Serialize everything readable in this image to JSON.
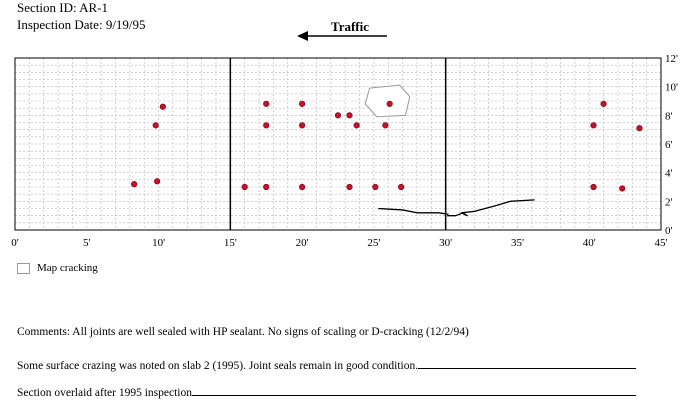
{
  "header": {
    "section_label": "Section ID:",
    "section_value": "AR-1",
    "date_label": "Inspection Date:",
    "date_value": "9/19/95"
  },
  "traffic": {
    "label": "Traffic",
    "direction": "left"
  },
  "legend": {
    "label": "Map cracking"
  },
  "comments": {
    "line1": "Comments: All joints are well sealed with HP sealant.  No signs of scaling or D-cracking (12/2/94)",
    "line2": "Some surface crazing was noted on slab 2 (1995).  Joint seals remain in good condition.",
    "line3": "Section overlaid after 1995 inspection"
  },
  "chart_data": {
    "type": "scatter",
    "x_ticks": [
      "0'",
      "5'",
      "10'",
      "15'",
      "20'",
      "25'",
      "30'",
      "35'",
      "40'",
      "45'"
    ],
    "y_ticks": [
      "0'",
      "2'",
      "4'",
      "6'",
      "8'",
      "10'",
      "12'"
    ],
    "xlim": [
      0,
      45
    ],
    "ylim": [
      0,
      12
    ],
    "joints_ft": [
      15,
      30
    ],
    "grid": true,
    "point_color": "#c8102e",
    "points": [
      {
        "x": 10.3,
        "y": 8.6
      },
      {
        "x": 9.8,
        "y": 7.3
      },
      {
        "x": 8.3,
        "y": 3.2
      },
      {
        "x": 9.9,
        "y": 3.4
      },
      {
        "x": 17.5,
        "y": 8.8
      },
      {
        "x": 20.0,
        "y": 8.8
      },
      {
        "x": 17.5,
        "y": 7.3
      },
      {
        "x": 20.0,
        "y": 7.3
      },
      {
        "x": 22.5,
        "y": 8.0
      },
      {
        "x": 23.3,
        "y": 8.0
      },
      {
        "x": 23.8,
        "y": 7.3
      },
      {
        "x": 26.1,
        "y": 8.8
      },
      {
        "x": 25.8,
        "y": 7.3
      },
      {
        "x": 16.0,
        "y": 3.0
      },
      {
        "x": 17.5,
        "y": 3.0
      },
      {
        "x": 20.0,
        "y": 3.0
      },
      {
        "x": 23.3,
        "y": 3.0
      },
      {
        "x": 25.1,
        "y": 3.0
      },
      {
        "x": 26.9,
        "y": 3.0
      },
      {
        "x": 41.0,
        "y": 8.8
      },
      {
        "x": 40.3,
        "y": 7.3
      },
      {
        "x": 43.5,
        "y": 7.1
      },
      {
        "x": 40.3,
        "y": 3.0
      },
      {
        "x": 42.3,
        "y": 2.9
      }
    ],
    "map_cracking_area": [
      [
        24.7,
        9.9
      ],
      [
        26.8,
        10.1
      ],
      [
        27.5,
        9.3
      ],
      [
        27.2,
        8.0
      ],
      [
        25.2,
        7.9
      ],
      [
        24.4,
        8.8
      ]
    ],
    "cracks": [
      [
        [
          25.3,
          1.5
        ],
        [
          27.0,
          1.4
        ],
        [
          28.0,
          1.2
        ],
        [
          29.5,
          1.2
        ],
        [
          30.2,
          1.1
        ]
      ],
      [
        [
          30.1,
          1.0
        ],
        [
          30.7,
          1.0
        ],
        [
          31.2,
          1.2
        ],
        [
          31.5,
          1.0
        ],
        [
          31.1,
          1.2
        ],
        [
          32.0,
          1.3
        ],
        [
          33.5,
          1.7
        ],
        [
          34.5,
          2.0
        ],
        [
          36.2,
          2.1
        ]
      ]
    ]
  }
}
